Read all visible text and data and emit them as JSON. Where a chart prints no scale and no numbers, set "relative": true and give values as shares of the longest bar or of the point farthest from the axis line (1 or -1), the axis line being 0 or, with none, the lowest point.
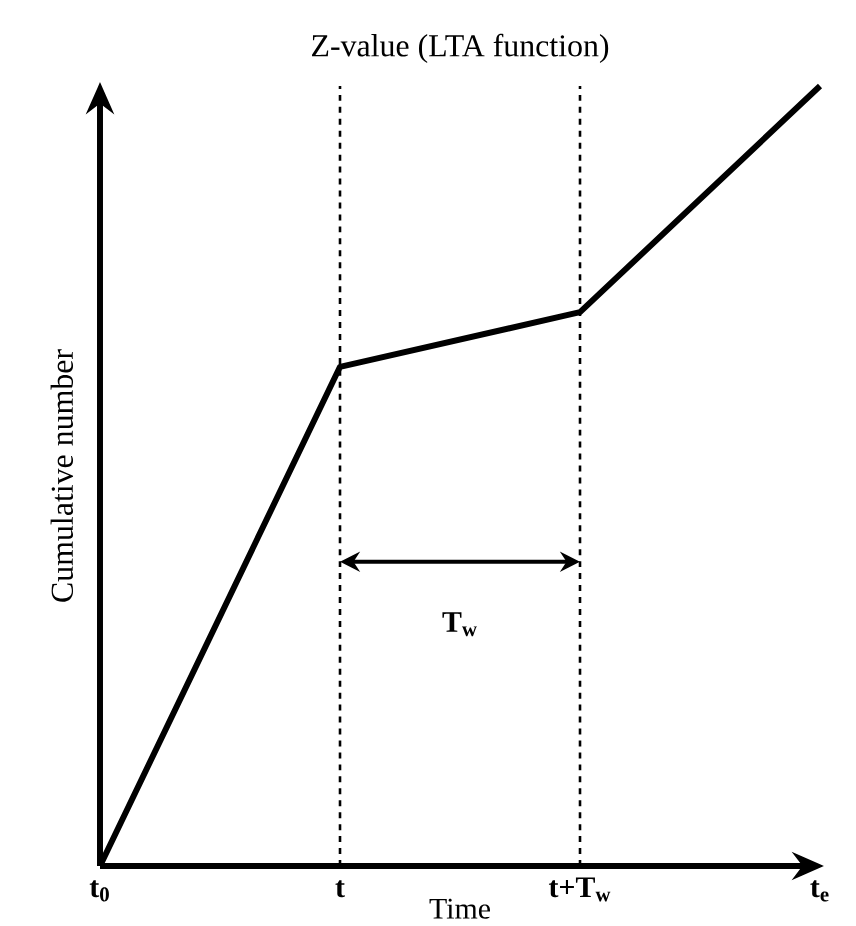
{
  "chart_data": {
    "type": "line",
    "title": "Z-value (LTA function)",
    "xlabel": "Time",
    "ylabel": "Cumulative number",
    "categories": [
      "t$_{0}$",
      "t",
      "t+T$_{w}$",
      "t$_{e}$"
    ],
    "relative": true,
    "series": [
      {
        "color": "#000000",
        "values": [
          0,
          0.64,
          0.71,
          1
        ]
      }
    ],
    "ref_lines": [
      {
        "axis": "x",
        "value": "t",
        "line_style": "dashed"
      },
      {
        "axis": "x",
        "value": "t+T$_{w}$",
        "line_style": "dashed"
      }
    ],
    "annotations": [
      "T$_{w}$"
    ]
  }
}
